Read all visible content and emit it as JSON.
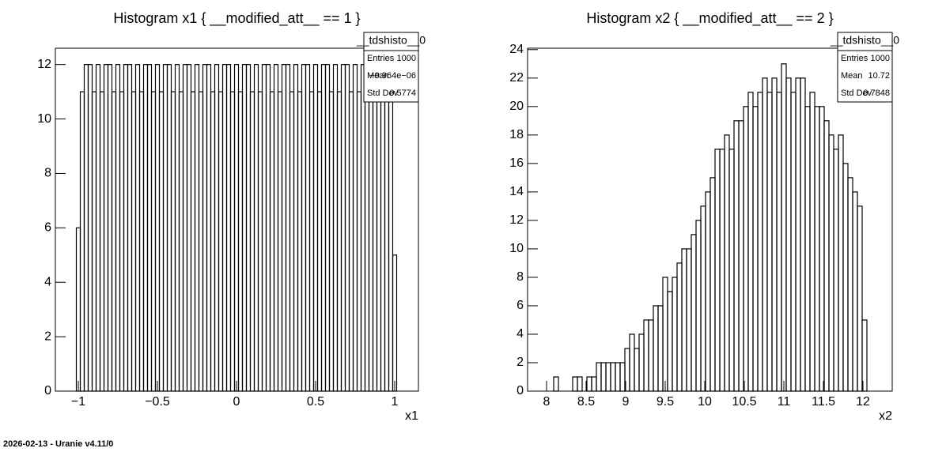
{
  "chart_data": [
    {
      "type": "histogram",
      "title": "Histogram x1 { __modified_att__ == 1 }",
      "xlabel": "x1",
      "color": "#000000",
      "bins": [
        -1.0125,
        -0.9875,
        -0.9625,
        -0.9375,
        -0.9125,
        -0.8875,
        -0.8625,
        -0.8375,
        -0.8125,
        -0.7875,
        -0.7625,
        -0.7375,
        -0.7125,
        -0.6875,
        -0.6625,
        -0.6375,
        -0.6125,
        -0.5875,
        -0.5625,
        -0.5375,
        -0.5125,
        -0.4875,
        -0.4625,
        -0.4375,
        -0.4125,
        -0.3875,
        -0.3625,
        -0.3375,
        -0.3125,
        -0.2875,
        -0.2625,
        -0.2375,
        -0.2125,
        -0.1875,
        -0.1625,
        -0.1375,
        -0.1125,
        -0.0875,
        -0.0625,
        -0.0375,
        -0.0125,
        0.0125,
        0.0375,
        0.0625,
        0.0875,
        0.1125,
        0.1375,
        0.1625,
        0.1875,
        0.2125,
        0.2375,
        0.2625,
        0.2875,
        0.3125,
        0.3375,
        0.3625,
        0.3875,
        0.4125,
        0.4375,
        0.4625,
        0.4875,
        0.5125,
        0.5375,
        0.5625,
        0.5875,
        0.6125,
        0.6375,
        0.6625,
        0.6875,
        0.7125,
        0.7375,
        0.7625,
        0.7875,
        0.8125,
        0.8375,
        0.8625,
        0.8875,
        0.9125,
        0.9375,
        0.9625,
        0.9875,
        1.0125
      ],
      "values": [
        6,
        11,
        12,
        12,
        11,
        12,
        11,
        12,
        12,
        11,
        12,
        11,
        12,
        12,
        11,
        12,
        11,
        12,
        12,
        11,
        12,
        11,
        12,
        12,
        11,
        12,
        11,
        12,
        12,
        11,
        12,
        11,
        12,
        12,
        11,
        12,
        11,
        12,
        12,
        11,
        12,
        11,
        12,
        12,
        11,
        12,
        11,
        12,
        12,
        11,
        12,
        11,
        12,
        12,
        11,
        12,
        11,
        12,
        12,
        11,
        12,
        11,
        12,
        12,
        11,
        12,
        11,
        12,
        12,
        11,
        12,
        11,
        12,
        12,
        11,
        12,
        11,
        12,
        12,
        11,
        5
      ],
      "xlim": [
        -1.145,
        1.15
      ],
      "ylim": [
        0,
        12.6
      ],
      "xticks": [
        {
          "value": -1,
          "label": "−1"
        },
        {
          "value": -0.5,
          "label": "−0.5"
        },
        0,
        0.5,
        1
      ],
      "yticks": [
        0,
        2,
        4,
        6,
        8,
        10,
        12
      ],
      "stats": {
        "title": "__tdshisto__0",
        "rows": [
          [
            "Entries",
            "1000"
          ],
          [
            "Mean",
            "−9.964e−06"
          ],
          [
            "Std Dev",
            "0.5774"
          ]
        ]
      }
    },
    {
      "type": "histogram",
      "title": "Histogram x2 { __modified_att__ == 2 }",
      "xlabel": "x2",
      "color": "#000000",
      "bins": [
        8.03,
        8.09,
        8.15,
        8.21,
        8.27,
        8.33,
        8.39,
        8.45,
        8.51,
        8.57,
        8.63,
        8.69,
        8.75,
        8.81,
        8.87,
        8.93,
        8.99,
        9.05,
        9.11,
        9.17,
        9.23,
        9.29,
        9.35,
        9.41,
        9.47,
        9.53,
        9.59,
        9.65,
        9.71,
        9.77,
        9.83,
        9.89,
        9.95,
        10.01,
        10.07,
        10.13,
        10.19,
        10.25,
        10.31,
        10.37,
        10.43,
        10.49,
        10.55,
        10.61,
        10.67,
        10.73,
        10.79,
        10.85,
        10.91,
        10.97,
        11.03,
        11.09,
        11.15,
        11.21,
        11.27,
        11.33,
        11.39,
        11.45,
        11.51,
        11.57,
        11.63,
        11.69,
        11.75,
        11.81,
        11.87,
        11.93,
        11.99,
        12.05
      ],
      "values": [
        0,
        1,
        0,
        0,
        0,
        1,
        1,
        0,
        1,
        1,
        2,
        2,
        2,
        2,
        2,
        2,
        3,
        4,
        3,
        4,
        5,
        5,
        6,
        6,
        8,
        7,
        8,
        9,
        10,
        10,
        11,
        12,
        13,
        14,
        15,
        17,
        17,
        18,
        17,
        19,
        19,
        20,
        21,
        20,
        21,
        22,
        21,
        22,
        21,
        23,
        22,
        21,
        22,
        22,
        20,
        21,
        20,
        20,
        19,
        18,
        17,
        18,
        16,
        15,
        14,
        13,
        5
      ],
      "xlim": [
        7.76,
        12.37
      ],
      "ylim": [
        0,
        24.1
      ],
      "xticks": [
        8,
        8.5,
        9,
        9.5,
        10,
        10.5,
        11,
        11.5,
        12
      ],
      "yticks": [
        0,
        2,
        4,
        6,
        8,
        10,
        12,
        14,
        16,
        18,
        20,
        22,
        24
      ],
      "stats": {
        "title": "__tdshisto__0",
        "rows": [
          [
            "Entries",
            "1000"
          ],
          [
            "Mean",
            "10.72"
          ],
          [
            "Std Dev",
            "0.7848"
          ]
        ]
      }
    }
  ],
  "footer": "2026-02-13 - Uranie v4.11/0"
}
